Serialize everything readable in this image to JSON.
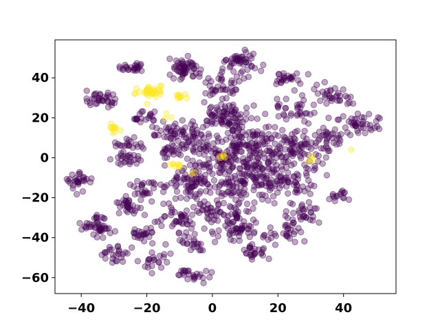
{
  "chart_data": {
    "type": "scatter",
    "title": "",
    "xlabel": "",
    "ylabel": "",
    "xlim": [
      -48,
      56
    ],
    "ylim": [
      -68,
      59
    ],
    "xticks": [
      -40,
      -20,
      0,
      20,
      40
    ],
    "yticks": [
      -60,
      -40,
      -20,
      0,
      20,
      40
    ],
    "xtick_labels": [
      "−40",
      "−20",
      "0",
      "20",
      "40"
    ],
    "ytick_labels": [
      "−60",
      "−40",
      "−20",
      "0",
      "20",
      "40"
    ],
    "grid": false,
    "legend": "none",
    "marker_alpha": 0.35,
    "class_colors": {
      "class_0": "#440154",
      "class_1": "#fde725"
    },
    "clusters": [
      {
        "class": 0,
        "cx": -24,
        "cy": 45,
        "sx": 2.0,
        "sy": 1.6,
        "n": 25
      },
      {
        "class": 0,
        "cx": -9,
        "cy": 44,
        "sx": 2.5,
        "sy": 2.8,
        "n": 55
      },
      {
        "class": 0,
        "cx": 9,
        "cy": 47,
        "sx": 2.5,
        "sy": 3.5,
        "n": 50
      },
      {
        "class": 0,
        "cx": 24,
        "cy": 40,
        "sx": 2.5,
        "sy": 1.5,
        "n": 25
      },
      {
        "class": 0,
        "cx": 3,
        "cy": 35,
        "sx": 3.0,
        "sy": 3.0,
        "n": 35
      },
      {
        "class": 0,
        "cx": -34,
        "cy": 29,
        "sx": 2.5,
        "sy": 2.0,
        "n": 35
      },
      {
        "class": 0,
        "cx": 37,
        "cy": 30,
        "sx": 3.0,
        "sy": 2.5,
        "n": 35
      },
      {
        "class": 0,
        "cx": 45,
        "cy": 17,
        "sx": 3.0,
        "sy": 2.5,
        "n": 40
      },
      {
        "class": 0,
        "cx": -22,
        "cy": 20,
        "sx": 2.0,
        "sy": 1.5,
        "n": 20
      },
      {
        "class": 0,
        "cx": -14,
        "cy": 14,
        "sx": 3.0,
        "sy": 2.0,
        "n": 30
      },
      {
        "class": 0,
        "cx": -26,
        "cy": 7,
        "sx": 2.5,
        "sy": 2.0,
        "n": 20
      },
      {
        "class": 0,
        "cx": -12,
        "cy": 3,
        "sx": 2.0,
        "sy": 2.0,
        "n": 20
      },
      {
        "class": 0,
        "cx": -26,
        "cy": -1,
        "sx": 2.0,
        "sy": 2.0,
        "n": 25
      },
      {
        "class": 0,
        "cx": -40,
        "cy": -12,
        "sx": 2.0,
        "sy": 2.5,
        "n": 30
      },
      {
        "class": 0,
        "cx": -20,
        "cy": -16,
        "sx": 3.0,
        "sy": 3.0,
        "n": 30
      },
      {
        "class": 0,
        "cx": -8,
        "cy": -12,
        "sx": 3.0,
        "sy": 3.0,
        "n": 30
      },
      {
        "class": 0,
        "cx": -26,
        "cy": -24,
        "sx": 2.0,
        "sy": 2.5,
        "n": 30
      },
      {
        "class": 0,
        "cx": -35,
        "cy": -34,
        "sx": 2.5,
        "sy": 3.0,
        "n": 45
      },
      {
        "class": 0,
        "cx": -22,
        "cy": -38,
        "sx": 2.0,
        "sy": 2.0,
        "n": 25
      },
      {
        "class": 0,
        "cx": -10,
        "cy": -30,
        "sx": 3.0,
        "sy": 3.0,
        "n": 40
      },
      {
        "class": 0,
        "cx": -30,
        "cy": -48,
        "sx": 2.5,
        "sy": 2.0,
        "n": 25
      },
      {
        "class": 0,
        "cx": -18,
        "cy": -52,
        "sx": 2.0,
        "sy": 2.0,
        "n": 20
      },
      {
        "class": 0,
        "cx": -7,
        "cy": -43,
        "sx": 2.5,
        "sy": 2.5,
        "n": 25
      },
      {
        "class": 0,
        "cx": -6,
        "cy": -59,
        "sx": 2.5,
        "sy": 1.5,
        "n": 25
      },
      {
        "class": 0,
        "cx": 8,
        "cy": -37,
        "sx": 3.0,
        "sy": 3.0,
        "n": 40
      },
      {
        "class": 0,
        "cx": 13,
        "cy": -47,
        "sx": 2.5,
        "sy": 2.0,
        "n": 25
      },
      {
        "class": 0,
        "cx": 22,
        "cy": -37,
        "sx": 2.5,
        "sy": 3.0,
        "n": 30
      },
      {
        "class": 0,
        "cx": 28,
        "cy": -28,
        "sx": 3.0,
        "sy": 3.0,
        "n": 30
      },
      {
        "class": 0,
        "cx": 39,
        "cy": -19,
        "sx": 1.5,
        "sy": 1.5,
        "n": 15
      },
      {
        "class": 0,
        "cx": 38,
        "cy": 10,
        "sx": 2.0,
        "sy": 2.0,
        "n": 20
      },
      {
        "class": 0,
        "cx": 25,
        "cy": 25,
        "sx": 3.0,
        "sy": 3.0,
        "n": 30
      },
      {
        "class": 0,
        "cx": 5,
        "cy": 22,
        "sx": 4.0,
        "sy": 4.0,
        "n": 70
      },
      {
        "class": 0,
        "cx": 12,
        "cy": 5,
        "sx": 8.0,
        "sy": 8.0,
        "n": 220
      },
      {
        "class": 0,
        "cx": 2,
        "cy": -10,
        "sx": 7.0,
        "sy": 8.0,
        "n": 160
      },
      {
        "class": 0,
        "cx": 20,
        "cy": -12,
        "sx": 6.0,
        "sy": 6.0,
        "n": 100
      },
      {
        "class": 0,
        "cx": 28,
        "cy": 5,
        "sx": 5.0,
        "sy": 6.0,
        "n": 60
      },
      {
        "class": 0,
        "cx": -5,
        "cy": 10,
        "sx": 4.0,
        "sy": 6.0,
        "n": 60
      },
      {
        "class": 0,
        "cx": 2,
        "cy": -30,
        "sx": 5.0,
        "sy": 4.0,
        "n": 50
      },
      {
        "class": 1,
        "cx": -19,
        "cy": 33,
        "sx": 2.2,
        "sy": 1.5,
        "n": 40
      },
      {
        "class": 1,
        "cx": -10,
        "cy": 31,
        "sx": 1.5,
        "sy": 1.2,
        "n": 10
      },
      {
        "class": 1,
        "cx": -30,
        "cy": 15,
        "sx": 1.0,
        "sy": 1.3,
        "n": 12
      },
      {
        "class": 1,
        "cx": -10,
        "cy": -4,
        "sx": 1.3,
        "sy": 0.8,
        "n": 8
      },
      {
        "class": 1,
        "cx": 3,
        "cy": 1,
        "sx": 1.0,
        "sy": 0.8,
        "n": 5
      },
      {
        "class": 1,
        "cx": 30,
        "cy": 1,
        "sx": 1.0,
        "sy": 1.0,
        "n": 4
      },
      {
        "class": 1,
        "cx": -13,
        "cy": 21,
        "sx": 1.0,
        "sy": 0.8,
        "n": 3
      },
      {
        "class": 1,
        "cx": 43,
        "cy": 4,
        "sx": 0.5,
        "sy": 0.5,
        "n": 1
      },
      {
        "class": 1,
        "cx": -5,
        "cy": -8,
        "sx": 0.5,
        "sy": 0.5,
        "n": 2
      }
    ]
  }
}
